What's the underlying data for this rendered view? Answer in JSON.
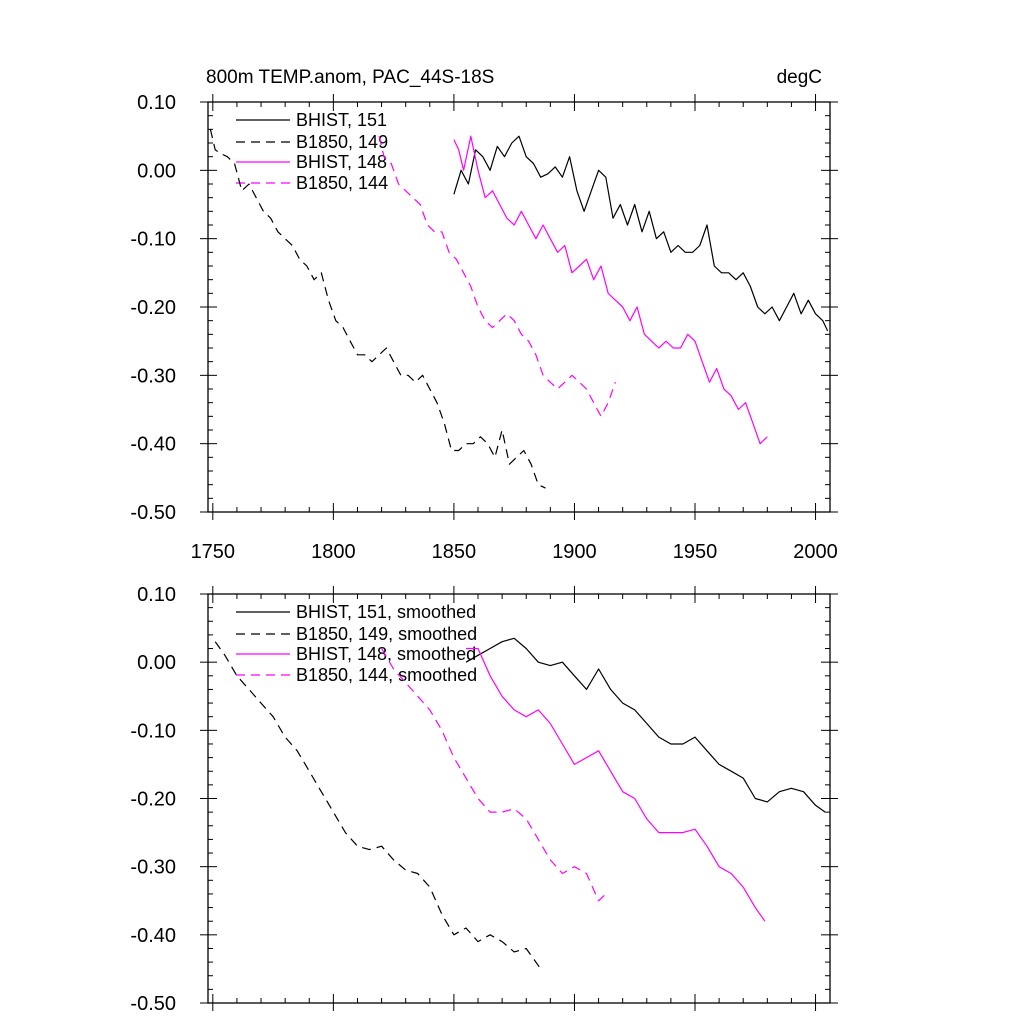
{
  "chart_data": [
    {
      "type": "line",
      "title": "800m TEMP.anom, PAC_44S-18S",
      "units": "degC",
      "xlim": [
        1748,
        2006
      ],
      "ylim": [
        -0.5,
        0.1
      ],
      "x_ticks": [
        "1750",
        "1800",
        "1850",
        "1900",
        "1950",
        "2000"
      ],
      "y_ticks": [
        "0.10",
        "0.00",
        "-0.10",
        "-0.20",
        "-0.30",
        "-0.40",
        "-0.50"
      ],
      "grid": false,
      "legend_position": "top-left",
      "colors": {
        "black": "#000000",
        "magenta": "#ff00ff"
      },
      "series": [
        {
          "name": "BHIST, 151",
          "color": "#000000",
          "dash": "solid",
          "x": [
            1850,
            1853,
            1856,
            1859,
            1862,
            1865,
            1868,
            1871,
            1874,
            1877,
            1880,
            1883,
            1886,
            1889,
            1892,
            1895,
            1898,
            1901,
            1904,
            1907,
            1910,
            1913,
            1916,
            1919,
            1922,
            1925,
            1928,
            1931,
            1934,
            1937,
            1940,
            1943,
            1946,
            1949,
            1952,
            1955,
            1958,
            1961,
            1964,
            1967,
            1970,
            1973,
            1976,
            1979,
            1982,
            1985,
            1988,
            1991,
            1994,
            1997,
            2000,
            2003,
            2005
          ],
          "y": [
            -0.035,
            0.0,
            -0.02,
            0.03,
            0.02,
            0.0,
            0.035,
            0.02,
            0.04,
            0.05,
            0.02,
            0.01,
            -0.01,
            -0.005,
            0.005,
            -0.01,
            0.02,
            -0.03,
            -0.06,
            -0.03,
            0.0,
            -0.01,
            -0.07,
            -0.05,
            -0.08,
            -0.05,
            -0.09,
            -0.06,
            -0.1,
            -0.09,
            -0.12,
            -0.11,
            -0.12,
            -0.12,
            -0.11,
            -0.08,
            -0.14,
            -0.15,
            -0.15,
            -0.16,
            -0.15,
            -0.17,
            -0.2,
            -0.21,
            -0.2,
            -0.22,
            -0.2,
            -0.18,
            -0.21,
            -0.19,
            -0.21,
            -0.22,
            -0.235
          ]
        },
        {
          "name": "B1850, 149",
          "color": "#000000",
          "dash": "dashed",
          "x": [
            1749,
            1751,
            1753,
            1756,
            1759,
            1762,
            1765,
            1768,
            1771,
            1774,
            1777,
            1780,
            1783,
            1786,
            1789,
            1792,
            1795,
            1798,
            1801,
            1804,
            1807,
            1810,
            1813,
            1816,
            1819,
            1822,
            1825,
            1828,
            1831,
            1834,
            1837,
            1840,
            1843,
            1846,
            1849,
            1852,
            1855,
            1858,
            1861,
            1864,
            1867,
            1870,
            1873,
            1876,
            1879,
            1882,
            1885,
            1888
          ],
          "y": [
            0.06,
            0.03,
            0.025,
            0.02,
            0.01,
            -0.03,
            -0.02,
            -0.04,
            -0.06,
            -0.07,
            -0.09,
            -0.1,
            -0.11,
            -0.13,
            -0.14,
            -0.16,
            -0.15,
            -0.19,
            -0.22,
            -0.23,
            -0.25,
            -0.27,
            -0.27,
            -0.28,
            -0.27,
            -0.26,
            -0.28,
            -0.3,
            -0.3,
            -0.31,
            -0.3,
            -0.32,
            -0.34,
            -0.37,
            -0.41,
            -0.41,
            -0.4,
            -0.4,
            -0.39,
            -0.4,
            -0.42,
            -0.38,
            -0.43,
            -0.42,
            -0.41,
            -0.43,
            -0.46,
            -0.465
          ]
        },
        {
          "name": "BHIST, 148",
          "color": "#ff00ff",
          "dash": "solid",
          "x": [
            1850,
            1852,
            1854,
            1857,
            1860,
            1863,
            1866,
            1869,
            1872,
            1875,
            1878,
            1881,
            1884,
            1887,
            1890,
            1893,
            1896,
            1899,
            1902,
            1905,
            1908,
            1911,
            1914,
            1917,
            1920,
            1923,
            1926,
            1929,
            1932,
            1935,
            1938,
            1941,
            1944,
            1947,
            1950,
            1953,
            1956,
            1959,
            1962,
            1965,
            1968,
            1971,
            1974,
            1977,
            1980
          ],
          "y": [
            0.045,
            0.03,
            0.0,
            0.05,
            0.0,
            -0.04,
            -0.03,
            -0.05,
            -0.07,
            -0.08,
            -0.06,
            -0.08,
            -0.1,
            -0.08,
            -0.1,
            -0.12,
            -0.11,
            -0.15,
            -0.14,
            -0.13,
            -0.16,
            -0.14,
            -0.18,
            -0.19,
            -0.2,
            -0.22,
            -0.2,
            -0.24,
            -0.25,
            -0.26,
            -0.25,
            -0.26,
            -0.26,
            -0.24,
            -0.25,
            -0.28,
            -0.31,
            -0.29,
            -0.32,
            -0.33,
            -0.35,
            -0.34,
            -0.37,
            -0.4,
            -0.39
          ]
        },
        {
          "name": "B1850, 144",
          "color": "#ff00ff",
          "dash": "dashed",
          "x": [
            1819,
            1821,
            1824,
            1827,
            1830,
            1833,
            1836,
            1839,
            1842,
            1845,
            1848,
            1851,
            1854,
            1857,
            1860,
            1863,
            1866,
            1869,
            1872,
            1875,
            1878,
            1881,
            1884,
            1887,
            1890,
            1893,
            1896,
            1899,
            1902,
            1905,
            1908,
            1911,
            1914,
            1917
          ],
          "y": [
            0.05,
            0.02,
            0.01,
            -0.02,
            -0.03,
            -0.04,
            -0.05,
            -0.08,
            -0.09,
            -0.09,
            -0.12,
            -0.13,
            -0.15,
            -0.17,
            -0.2,
            -0.22,
            -0.23,
            -0.22,
            -0.21,
            -0.22,
            -0.24,
            -0.25,
            -0.27,
            -0.3,
            -0.31,
            -0.32,
            -0.31,
            -0.3,
            -0.31,
            -0.32,
            -0.34,
            -0.36,
            -0.34,
            -0.31
          ]
        }
      ]
    },
    {
      "type": "line",
      "title": "",
      "units": "",
      "xlim": [
        1748,
        2006
      ],
      "ylim": [
        -0.5,
        0.1
      ],
      "x_ticks": [],
      "y_ticks": [
        "0.10",
        "0.00",
        "-0.10",
        "-0.20",
        "-0.30",
        "-0.40",
        "-0.50"
      ],
      "grid": false,
      "legend_position": "top-left",
      "series": [
        {
          "name": "BHIST, 151, smoothed",
          "color": "#000000",
          "dash": "solid",
          "x": [
            1855,
            1860,
            1865,
            1870,
            1875,
            1880,
            1885,
            1890,
            1895,
            1900,
            1905,
            1910,
            1915,
            1920,
            1925,
            1930,
            1935,
            1940,
            1945,
            1950,
            1955,
            1960,
            1965,
            1970,
            1975,
            1980,
            1985,
            1990,
            1995,
            2000,
            2004
          ],
          "y": [
            0.0,
            0.01,
            0.02,
            0.03,
            0.035,
            0.02,
            0.0,
            -0.005,
            0.0,
            -0.02,
            -0.04,
            -0.01,
            -0.04,
            -0.06,
            -0.07,
            -0.09,
            -0.11,
            -0.12,
            -0.12,
            -0.11,
            -0.13,
            -0.15,
            -0.16,
            -0.17,
            -0.2,
            -0.205,
            -0.19,
            -0.185,
            -0.19,
            -0.21,
            -0.22
          ]
        },
        {
          "name": "B1850, 149, smoothed",
          "color": "#000000",
          "dash": "dashed",
          "x": [
            1751,
            1755,
            1760,
            1765,
            1770,
            1775,
            1780,
            1785,
            1790,
            1795,
            1800,
            1805,
            1810,
            1815,
            1820,
            1825,
            1830,
            1835,
            1840,
            1845,
            1850,
            1855,
            1860,
            1865,
            1870,
            1875,
            1880,
            1886
          ],
          "y": [
            0.03,
            0.01,
            -0.02,
            -0.04,
            -0.06,
            -0.08,
            -0.11,
            -0.13,
            -0.16,
            -0.19,
            -0.22,
            -0.25,
            -0.27,
            -0.275,
            -0.27,
            -0.29,
            -0.305,
            -0.31,
            -0.33,
            -0.37,
            -0.4,
            -0.39,
            -0.41,
            -0.4,
            -0.41,
            -0.425,
            -0.42,
            -0.45
          ]
        },
        {
          "name": "BHIST, 148, smoothed",
          "color": "#ff00ff",
          "dash": "solid",
          "x": [
            1855,
            1860,
            1865,
            1870,
            1875,
            1880,
            1885,
            1890,
            1895,
            1900,
            1905,
            1910,
            1915,
            1920,
            1925,
            1930,
            1935,
            1940,
            1945,
            1950,
            1955,
            1960,
            1965,
            1970,
            1975,
            1979
          ],
          "y": [
            0.02,
            0.02,
            -0.02,
            -0.05,
            -0.07,
            -0.08,
            -0.07,
            -0.09,
            -0.12,
            -0.15,
            -0.14,
            -0.13,
            -0.16,
            -0.19,
            -0.2,
            -0.23,
            -0.25,
            -0.25,
            -0.25,
            -0.245,
            -0.27,
            -0.3,
            -0.31,
            -0.33,
            -0.36,
            -0.38
          ]
        },
        {
          "name": "B1850, 144, smoothed",
          "color": "#ff00ff",
          "dash": "dashed",
          "x": [
            1820,
            1825,
            1830,
            1835,
            1840,
            1845,
            1850,
            1855,
            1860,
            1865,
            1870,
            1875,
            1880,
            1885,
            1890,
            1895,
            1900,
            1905,
            1910,
            1913
          ],
          "y": [
            0.02,
            -0.01,
            -0.03,
            -0.05,
            -0.07,
            -0.1,
            -0.14,
            -0.17,
            -0.2,
            -0.22,
            -0.22,
            -0.215,
            -0.23,
            -0.26,
            -0.29,
            -0.31,
            -0.3,
            -0.31,
            -0.35,
            -0.34
          ]
        }
      ]
    }
  ]
}
